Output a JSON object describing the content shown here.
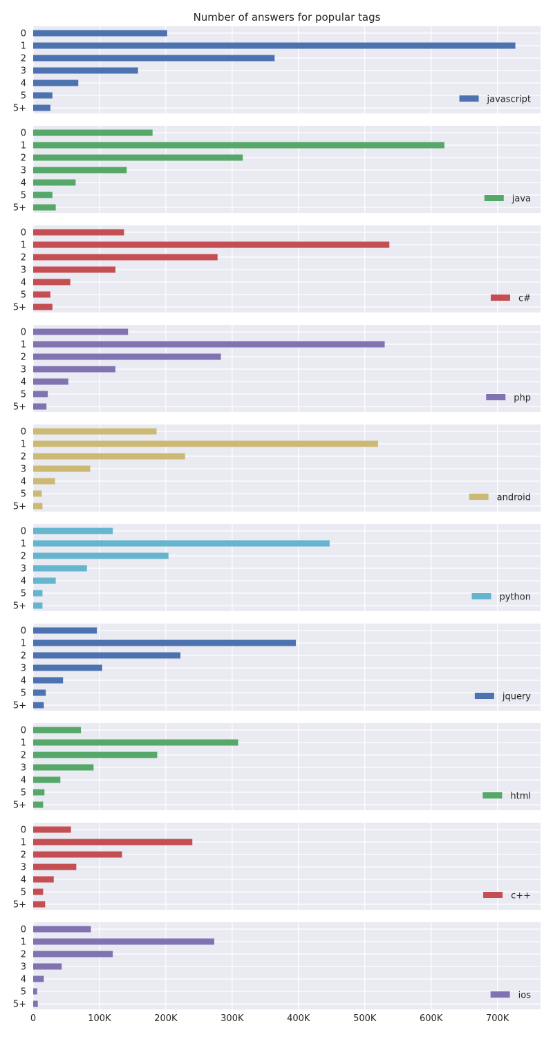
{
  "chart_data": {
    "type": "bar",
    "orientation": "horizontal",
    "title": "Number of answers for popular tags",
    "xlabel": "",
    "ylabel": "",
    "categories": [
      "0",
      "1",
      "2",
      "3",
      "4",
      "5",
      "5+"
    ],
    "xlim": [
      0,
      765000
    ],
    "x_ticks": [
      0,
      100000,
      200000,
      300000,
      400000,
      500000,
      600000,
      700000
    ],
    "x_tick_labels": [
      "0",
      "100K",
      "200K",
      "300K",
      "400K",
      "500K",
      "600K",
      "700K"
    ],
    "grid": true,
    "legend_position": "lower-right",
    "series": [
      {
        "name": "javascript",
        "color": "#4c72b0",
        "values": [
          202000,
          727000,
          364000,
          158000,
          68000,
          29000,
          26000
        ]
      },
      {
        "name": "java",
        "color": "#55a868",
        "values": [
          180000,
          620000,
          316000,
          141000,
          64000,
          29000,
          34000
        ]
      },
      {
        "name": "c#",
        "color": "#c44e52",
        "values": [
          137000,
          537000,
          278000,
          124000,
          56000,
          26000,
          29000
        ]
      },
      {
        "name": "php",
        "color": "#8172b2",
        "values": [
          143000,
          530000,
          283000,
          124000,
          53000,
          22000,
          20000
        ]
      },
      {
        "name": "android",
        "color": "#ccb974",
        "values": [
          186000,
          520000,
          229000,
          86000,
          33000,
          13000,
          14000
        ]
      },
      {
        "name": "python",
        "color": "#64b5cd",
        "values": [
          120000,
          447000,
          204000,
          81000,
          34000,
          14000,
          14000
        ]
      },
      {
        "name": "jquery",
        "color": "#4c72b0",
        "values": [
          96000,
          396000,
          222000,
          104000,
          45000,
          19000,
          16000
        ]
      },
      {
        "name": "html",
        "color": "#55a868",
        "values": [
          72000,
          309000,
          187000,
          91000,
          41000,
          17000,
          15000
        ]
      },
      {
        "name": "c++",
        "color": "#c44e52",
        "values": [
          57000,
          240000,
          134000,
          65000,
          31000,
          15000,
          18000
        ]
      },
      {
        "name": "ios",
        "color": "#8172b2",
        "values": [
          87000,
          273000,
          120000,
          43000,
          16000,
          6000,
          7000
        ]
      }
    ]
  }
}
